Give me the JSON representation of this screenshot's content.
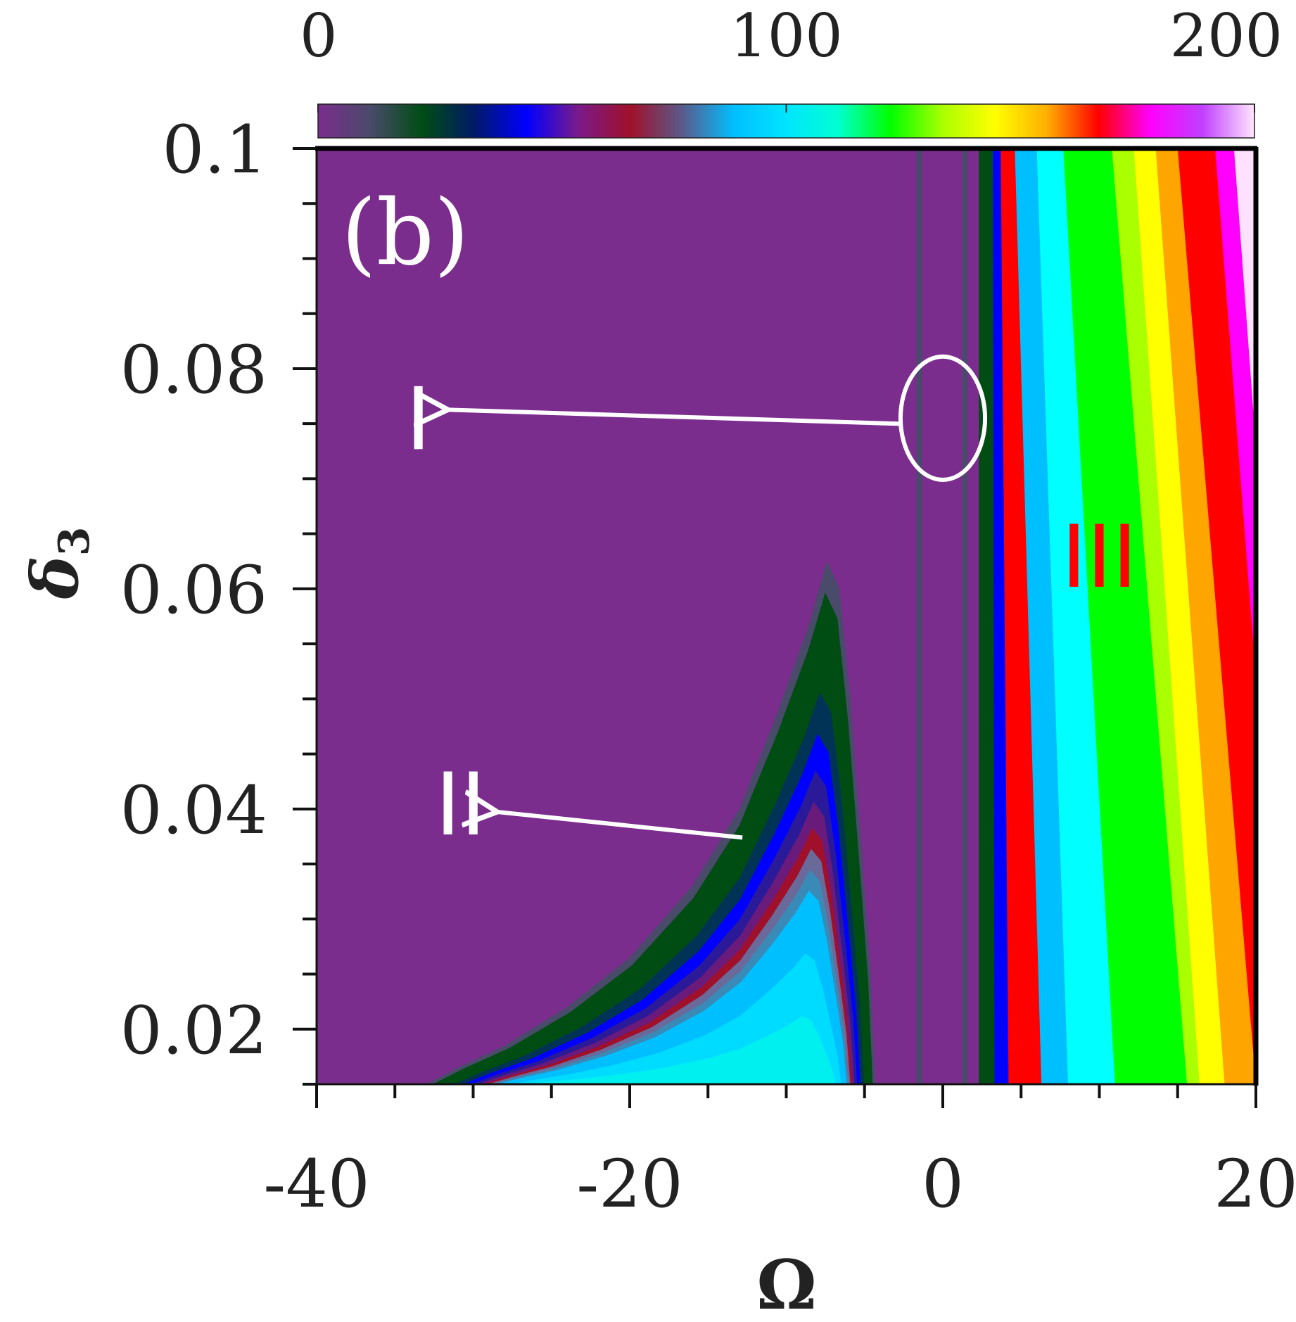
{
  "chart_data": {
    "type": "heatmap",
    "panel_label": "(b)",
    "xlabel": "Ω",
    "ylabel": "δ",
    "ylabel_subscript": "3",
    "xlim": [
      -40,
      20
    ],
    "ylim": [
      0.015,
      0.1
    ],
    "x_ticks": [
      -40,
      -20,
      0,
      20
    ],
    "x_tick_labels": [
      "-40",
      "-20",
      "0",
      "20"
    ],
    "x_minor_step": 5,
    "y_ticks": [
      0.02,
      0.04,
      0.06,
      0.08,
      0.1
    ],
    "y_tick_labels": [
      "0.02",
      "0.04",
      "0.06",
      "0.08",
      "0.1"
    ],
    "y_minor_step": 0.005,
    "colorbar": {
      "position": "top",
      "range": [
        0,
        200
      ],
      "ticks": [
        0,
        100,
        200
      ],
      "tick_labels": [
        "0",
        "100",
        "200"
      ],
      "colors": [
        "#7b2d8e",
        "#4a4a6a",
        "#004d14",
        "#001a66",
        "#0000ff",
        "#7a1a8a",
        "#a0102a",
        "#5a5a8a",
        "#00bfff",
        "#00e5ff",
        "#00ffd0",
        "#00ff00",
        "#aaff00",
        "#ffff00",
        "#ffb000",
        "#ff0000",
        "#ff00ff",
        "#c040ff",
        "#ffe6ff"
      ]
    },
    "regions": [
      {
        "label": "I",
        "color": "#ffffff",
        "at": [
          -33.5,
          0.0755
        ],
        "ellipse_center": [
          0,
          0.0755
        ],
        "ellipse_radius": [
          2.7,
          0.0056
        ]
      },
      {
        "label": "II",
        "color": "#ffffff",
        "at": [
          -30.8,
          0.0405
        ],
        "arrow_from": [
          -12.8,
          0.0374
        ]
      },
      {
        "label": "III",
        "color": "#ff0000",
        "at": [
          10,
          0.063
        ]
      }
    ],
    "region_II_tongue": [
      [
        -33,
        0.015
      ],
      [
        -31,
        0.0165
      ],
      [
        -28,
        0.0185
      ],
      [
        -24,
        0.022
      ],
      [
        -20,
        0.0265
      ],
      [
        -16,
        0.033
      ],
      [
        -13,
        0.04
      ],
      [
        -10.5,
        0.049
      ],
      [
        -8.5,
        0.057
      ],
      [
        -7.4,
        0.0625
      ],
      [
        -6.6,
        0.06
      ],
      [
        -5.9,
        0.05
      ],
      [
        -5.1,
        0.035
      ],
      [
        -4.6,
        0.025
      ],
      [
        -4.3,
        0.015
      ]
    ],
    "tongue_bands": [
      {
        "shrink": 0.0,
        "color": "#4a4a6a"
      },
      {
        "shrink": 0.06,
        "color": "#004d14"
      },
      {
        "shrink": 0.25,
        "color": "#003355"
      },
      {
        "shrink": 0.33,
        "color": "#0000ff"
      },
      {
        "shrink": 0.4,
        "color": "#2a1a9a"
      },
      {
        "shrink": 0.46,
        "color": "#6a1a7a"
      },
      {
        "shrink": 0.51,
        "color": "#a0102a"
      },
      {
        "shrink": 0.55,
        "color": "#6a6a9a"
      },
      {
        "shrink": 0.59,
        "color": "#3a8ab8"
      },
      {
        "shrink": 0.63,
        "color": "#00bfff"
      },
      {
        "shrink": 0.75,
        "color": "#00dcff"
      },
      {
        "shrink": 0.87,
        "color": "#00f0f0"
      }
    ],
    "region_III_stripes": [
      {
        "x_top": 2.3,
        "x_bottom": 2.3,
        "color": "#004d14"
      },
      {
        "x_top": 3.2,
        "x_bottom": 3.3,
        "color": "#0000ff"
      },
      {
        "x_top": 3.7,
        "x_bottom": 4.2,
        "color": "#ff0000"
      },
      {
        "x_top": 4.6,
        "x_bottom": 6.3,
        "color": "#00bfff"
      },
      {
        "x_top": 6.0,
        "x_bottom": 8.0,
        "color": "#00ffff"
      },
      {
        "x_top": 7.7,
        "x_bottom": 11.0,
        "color": "#00ff00"
      },
      {
        "x_top": 10.8,
        "x_bottom": 15.6,
        "color": "#aaff00"
      },
      {
        "x_top": 12.2,
        "x_bottom": 16.4,
        "color": "#ffff00"
      },
      {
        "x_top": 13.6,
        "x_bottom": 18.0,
        "color": "#ffa500"
      },
      {
        "x_top": 15.0,
        "x_bottom": 20.0,
        "color": "#ff0000"
      },
      {
        "x_top": 17.4,
        "x_bottom": 22.0,
        "color": "#ff00ff"
      },
      {
        "x_top": 18.6,
        "x_bottom": 23.0,
        "color": "#ffe0ff"
      }
    ],
    "background_color": "#7b2d8e",
    "thin_lines": [
      {
        "x": -1.5,
        "color": "#4a4a6a"
      },
      {
        "x": 1.4,
        "color": "#4a4a6a"
      }
    ]
  }
}
